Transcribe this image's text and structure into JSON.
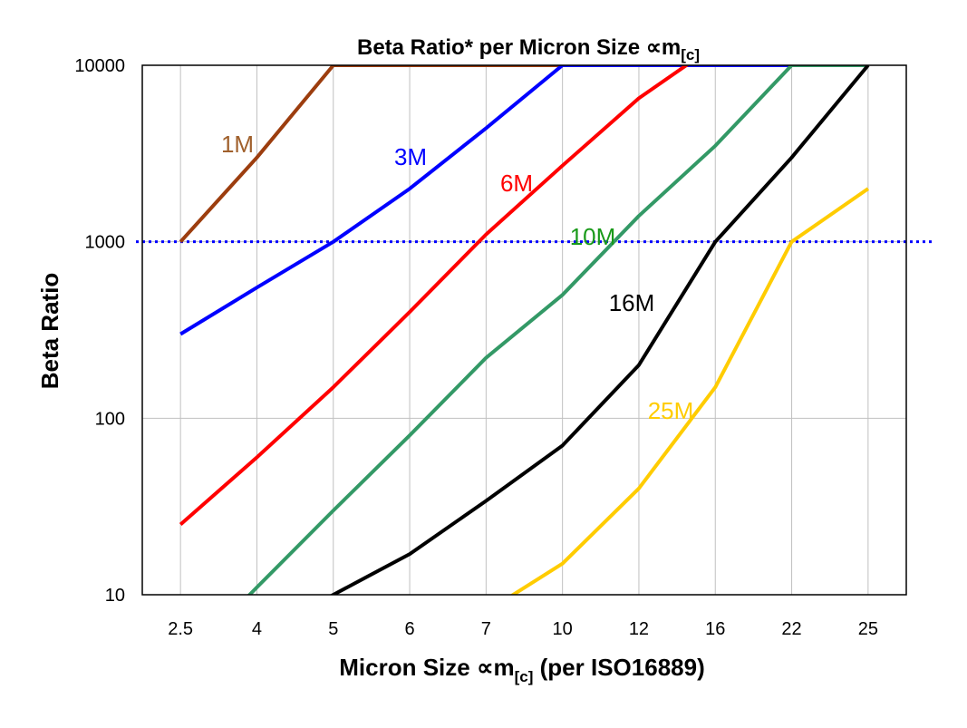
{
  "chart_data": {
    "type": "line",
    "title": "Beta Ratio* per Micron Size ∝m",
    "title_sub": "[c]",
    "xlabel": "Micron Size ∝m",
    "xlabel_sub": "[c]",
    "xlabel_suffix": " (per ISO16889)",
    "ylabel": "Beta Ratio",
    "yscale": "log",
    "ylim": [
      10,
      10000
    ],
    "yticks": [
      "10",
      "100",
      "1000",
      "10000"
    ],
    "grid": true,
    "legend": "inline labels",
    "categories": [
      "2.5",
      "4",
      "5",
      "6",
      "7",
      "10",
      "12",
      "16",
      "22",
      "25"
    ],
    "reference_line": {
      "y": 1000,
      "style": "dotted",
      "color": "#0000FF"
    },
    "series": [
      {
        "name": "1M",
        "color": "#9C3D0E",
        "label_color": "#A0602C",
        "values": [
          1000,
          3000,
          10000,
          10000,
          10000,
          10000,
          10000,
          10000,
          10000,
          10000
        ]
      },
      {
        "name": "3M",
        "color": "#0000FF",
        "label_color": "#0000FF",
        "values": [
          300,
          550,
          1000,
          2000,
          4400,
          10000,
          10000,
          10000,
          10000,
          10000
        ]
      },
      {
        "name": "6M",
        "color": "#FF0000",
        "label_color": "#FF0000",
        "values": [
          25,
          60,
          150,
          400,
          1100,
          2700,
          6500,
          13000,
          null,
          null
        ]
      },
      {
        "name": "10M",
        "color": "#339966",
        "label_color": "#1A9A1A",
        "values": [
          4,
          11,
          30,
          80,
          220,
          500,
          1400,
          3500,
          10000,
          10000
        ]
      },
      {
        "name": "16M",
        "color": "#000000",
        "label_color": "#000000",
        "values": [
          null,
          6,
          10,
          17,
          34,
          70,
          200,
          1000,
          3000,
          10000
        ]
      },
      {
        "name": "25M",
        "color": "#FFCC00",
        "label_color": "#FFCC00",
        "values": [
          null,
          null,
          null,
          null,
          8,
          15,
          40,
          150,
          1000,
          2000
        ]
      }
    ]
  }
}
